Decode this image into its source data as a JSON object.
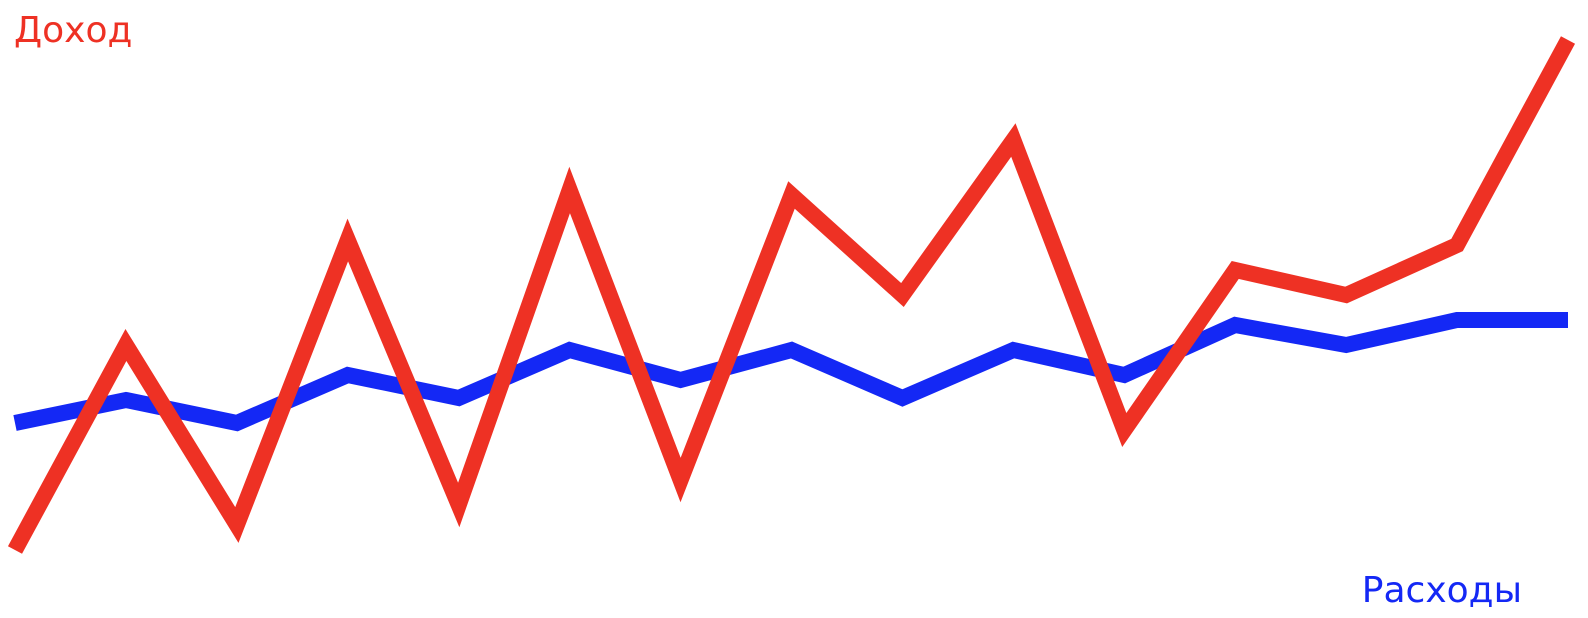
{
  "chart_data": {
    "type": "line",
    "categories": [
      null,
      null,
      null,
      null,
      null,
      null,
      null,
      null,
      null,
      null,
      null,
      null,
      null,
      null,
      null
    ],
    "series": [
      {
        "name": "Доход",
        "color": "#ee3124",
        "values": [
          68,
          273,
          93,
          378,
          113,
          428,
          138,
          423,
          323,
          478,
          188,
          348,
          323,
          373,
          578
        ]
      },
      {
        "name": "Расходы",
        "color": "#1428f5",
        "values": [
          195,
          218,
          195,
          243,
          220,
          268,
          238,
          268,
          220,
          268,
          243,
          293,
          273,
          298,
          298
        ]
      }
    ],
    "ylim": [
      0,
      618
    ]
  }
}
